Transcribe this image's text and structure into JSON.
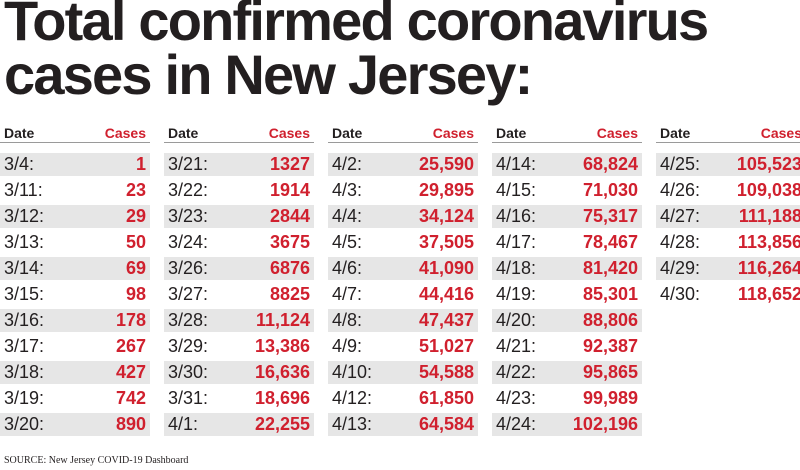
{
  "title": "Total confirmed coronavirus cases in New Jersey:",
  "source": "SOURCE: New Jersey COVID-19 Dashboard",
  "headers": {
    "date": "Date",
    "cases": "Cases"
  },
  "colors": {
    "accent": "#d0202e",
    "text": "#231f20",
    "shade": "#e6e6e6"
  },
  "columns": [
    [
      {
        "date": "3/4:",
        "cases": "1"
      },
      {
        "date": "3/11:",
        "cases": "23"
      },
      {
        "date": "3/12:",
        "cases": "29"
      },
      {
        "date": "3/13:",
        "cases": "50"
      },
      {
        "date": "3/14:",
        "cases": "69"
      },
      {
        "date": "3/15:",
        "cases": "98"
      },
      {
        "date": "3/16:",
        "cases": "178"
      },
      {
        "date": "3/17:",
        "cases": "267"
      },
      {
        "date": "3/18:",
        "cases": "427"
      },
      {
        "date": "3/19:",
        "cases": "742"
      },
      {
        "date": "3/20:",
        "cases": "890"
      }
    ],
    [
      {
        "date": "3/21:",
        "cases": "1327"
      },
      {
        "date": "3/22:",
        "cases": "1914"
      },
      {
        "date": "3/23:",
        "cases": "2844"
      },
      {
        "date": "3/24:",
        "cases": "3675"
      },
      {
        "date": "3/26:",
        "cases": "6876"
      },
      {
        "date": "3/27:",
        "cases": "8825"
      },
      {
        "date": "3/28:",
        "cases": "11,124"
      },
      {
        "date": "3/29:",
        "cases": "13,386"
      },
      {
        "date": "3/30:",
        "cases": "16,636"
      },
      {
        "date": "3/31:",
        "cases": "18,696"
      },
      {
        "date": "4/1:",
        "cases": "22,255"
      }
    ],
    [
      {
        "date": "4/2:",
        "cases": "25,590"
      },
      {
        "date": "4/3:",
        "cases": "29,895"
      },
      {
        "date": "4/4:",
        "cases": "34,124"
      },
      {
        "date": "4/5:",
        "cases": "37,505"
      },
      {
        "date": "4/6:",
        "cases": "41,090"
      },
      {
        "date": "4/7:",
        "cases": "44,416"
      },
      {
        "date": "4/8:",
        "cases": "47,437"
      },
      {
        "date": "4/9:",
        "cases": "51,027"
      },
      {
        "date": "4/10:",
        "cases": "54,588"
      },
      {
        "date": "4/12:",
        "cases": "61,850"
      },
      {
        "date": "4/13:",
        "cases": "64,584"
      }
    ],
    [
      {
        "date": "4/14:",
        "cases": "68,824"
      },
      {
        "date": "4/15:",
        "cases": "71,030"
      },
      {
        "date": "4/16:",
        "cases": "75,317"
      },
      {
        "date": "4/17:",
        "cases": "78,467"
      },
      {
        "date": "4/18:",
        "cases": "81,420"
      },
      {
        "date": "4/19:",
        "cases": "85,301"
      },
      {
        "date": "4/20:",
        "cases": "88,806"
      },
      {
        "date": "4/21:",
        "cases": "92,387"
      },
      {
        "date": "4/22:",
        "cases": "95,865"
      },
      {
        "date": "4/23:",
        "cases": "99,989"
      },
      {
        "date": "4/24:",
        "cases": "102,196"
      }
    ],
    [
      {
        "date": "4/25:",
        "cases": "105,523"
      },
      {
        "date": "4/26:",
        "cases": "109,038"
      },
      {
        "date": "4/27:",
        "cases": "111,188"
      },
      {
        "date": "4/28:",
        "cases": "113,856"
      },
      {
        "date": "4/29:",
        "cases": "116,264"
      },
      {
        "date": "4/30:",
        "cases": "118,652"
      }
    ]
  ],
  "chart_data": {
    "type": "table",
    "title": "Total confirmed coronavirus cases in New Jersey:",
    "columns": [
      "Date",
      "Cases"
    ],
    "x": [
      "3/4",
      "3/11",
      "3/12",
      "3/13",
      "3/14",
      "3/15",
      "3/16",
      "3/17",
      "3/18",
      "3/19",
      "3/20",
      "3/21",
      "3/22",
      "3/23",
      "3/24",
      "3/26",
      "3/27",
      "3/28",
      "3/29",
      "3/30",
      "3/31",
      "4/1",
      "4/2",
      "4/3",
      "4/4",
      "4/5",
      "4/6",
      "4/7",
      "4/8",
      "4/9",
      "4/10",
      "4/12",
      "4/13",
      "4/14",
      "4/15",
      "4/16",
      "4/17",
      "4/18",
      "4/19",
      "4/20",
      "4/21",
      "4/22",
      "4/23",
      "4/24",
      "4/25",
      "4/26",
      "4/27",
      "4/28",
      "4/29",
      "4/30"
    ],
    "values": [
      1,
      23,
      29,
      50,
      69,
      98,
      178,
      267,
      427,
      742,
      890,
      1327,
      1914,
      2844,
      3675,
      6876,
      8825,
      11124,
      13386,
      16636,
      18696,
      22255,
      25590,
      29895,
      34124,
      37505,
      41090,
      44416,
      47437,
      51027,
      54588,
      61850,
      64584,
      68824,
      71030,
      75317,
      78467,
      81420,
      85301,
      88806,
      92387,
      95865,
      99989,
      102196,
      105523,
      109038,
      111188,
      113856,
      116264,
      118652
    ]
  }
}
